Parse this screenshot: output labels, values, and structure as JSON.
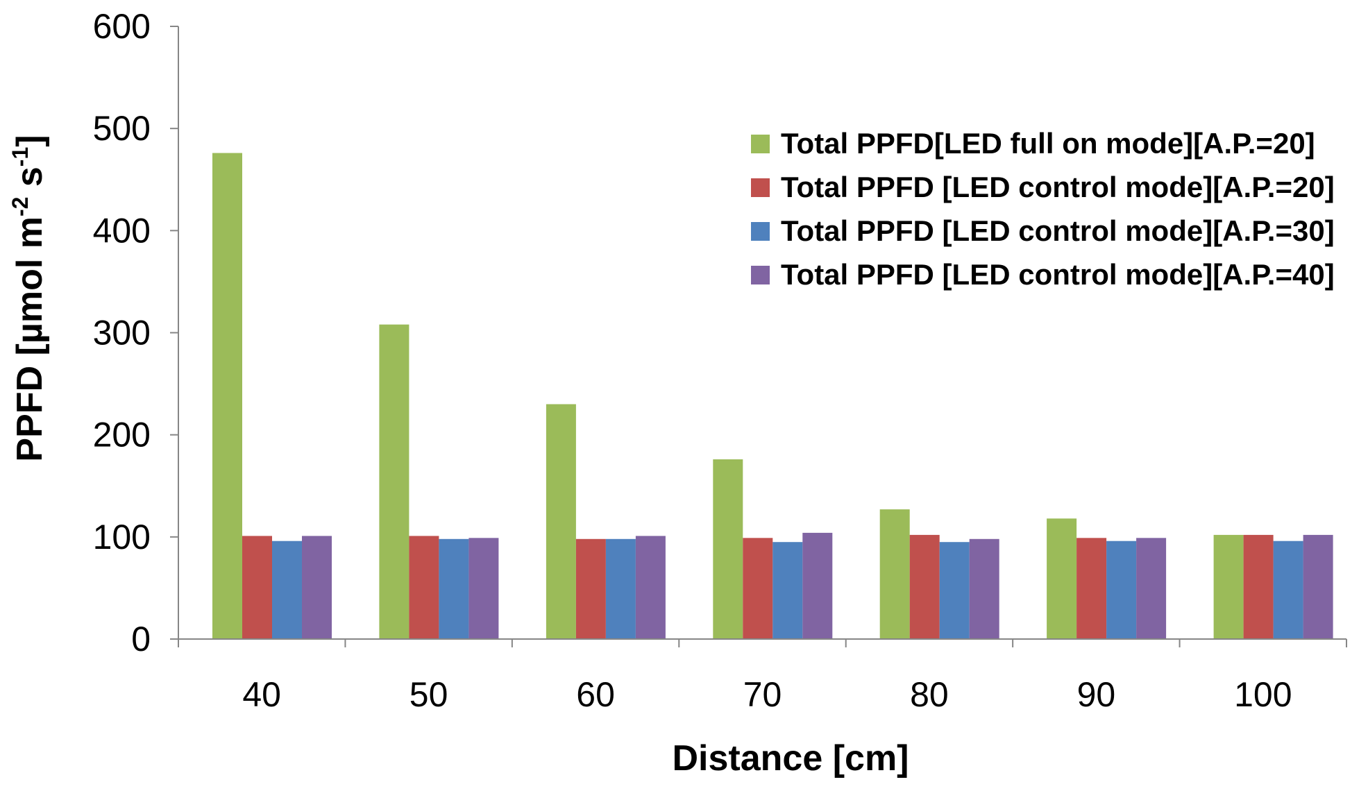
{
  "chart_data": {
    "type": "bar",
    "title": "",
    "xlabel": "Distance [cm]",
    "ylabel": {
      "prefix": "PPFD [µmol m",
      "exp1": "-2",
      "middle": " s",
      "exp2": "-1",
      "suffix": "]"
    },
    "ylim": [
      0,
      600
    ],
    "yticks": [
      "0",
      "100",
      "200",
      "300",
      "400",
      "500",
      "600"
    ],
    "grid": false,
    "legend_position": "top-right",
    "categories": [
      "40",
      "50",
      "60",
      "70",
      "80",
      "90",
      "100"
    ],
    "series": [
      {
        "name": "Total PPFD[LED full on mode][A.P.=20]",
        "color": "#9bbb59",
        "values": [
          476,
          308,
          230,
          176,
          127,
          118,
          102
        ]
      },
      {
        "name": "Total PPFD [LED control mode][A.P.=20]",
        "color": "#c0504d",
        "values": [
          101,
          101,
          98,
          99,
          102,
          99,
          102
        ]
      },
      {
        "name": "Total PPFD [LED control mode][A.P.=30]",
        "color": "#4f81bd",
        "values": [
          96,
          98,
          98,
          95,
          95,
          96,
          96
        ]
      },
      {
        "name": "Total PPFD [LED control mode][A.P.=40]",
        "color": "#8064a2",
        "values": [
          101,
          99,
          101,
          104,
          98,
          99,
          102
        ]
      }
    ]
  }
}
